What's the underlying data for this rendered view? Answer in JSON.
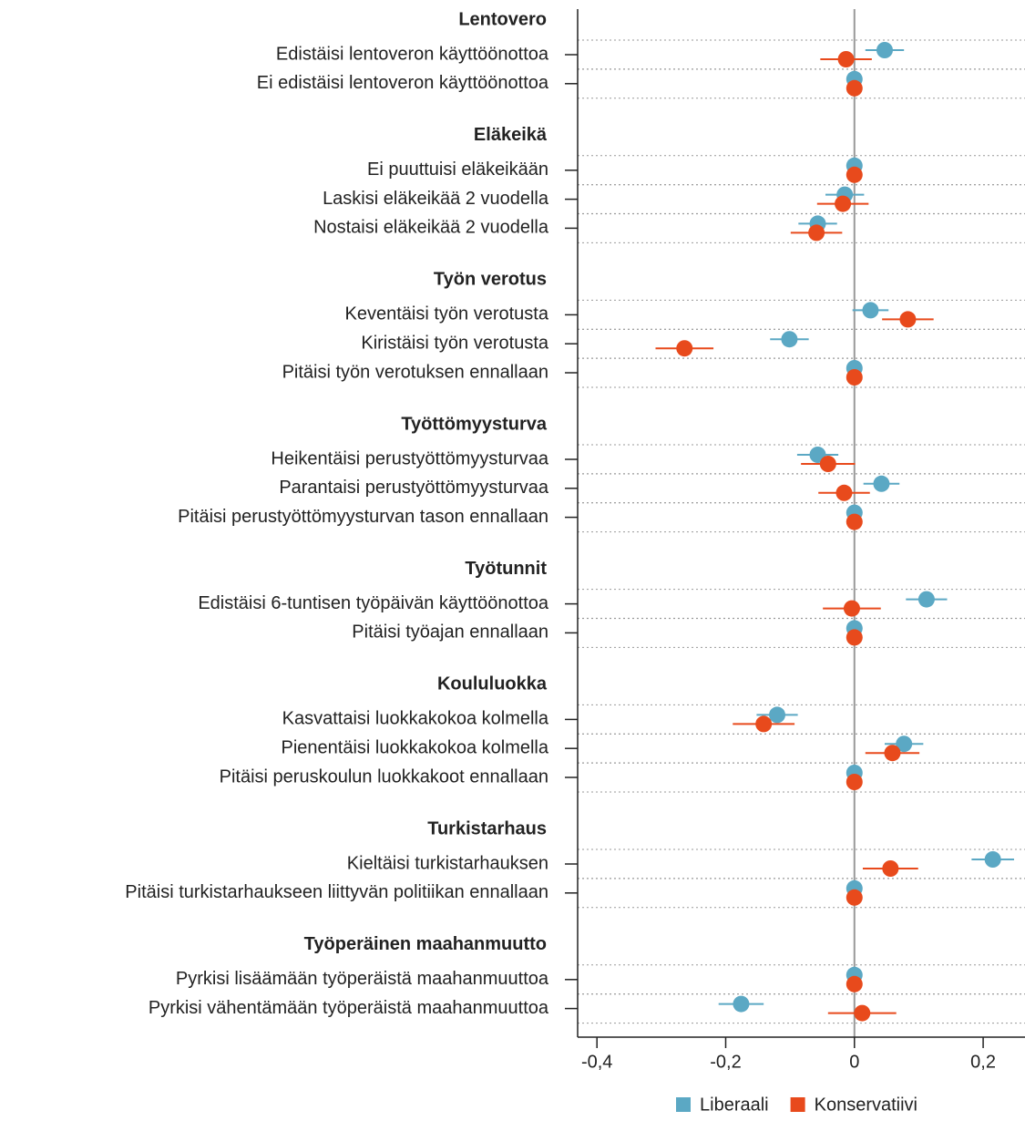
{
  "chart_data": {
    "type": "dotplot",
    "groups": [
      {
        "label": "Lentovero",
        "categories": [
          "Edistäisi lentoveron käyttöönottoa",
          "Ei edistäisi lentoveron käyttöönottoa"
        ]
      },
      {
        "label": "Eläkeikä",
        "categories": [
          "Ei puuttuisi eläkeikään",
          "Laskisi eläkeikää 2 vuodella",
          "Nostaisi eläkeikää 2 vuodella"
        ]
      },
      {
        "label": "Työn verotus",
        "categories": [
          "Keventäisi työn verotusta",
          "Kiristäisi työn verotusta",
          "Pitäisi työn verotuksen ennallaan"
        ]
      },
      {
        "label": "Työttömyysturva",
        "categories": [
          "Heikentäisi perustyöttömyysturvaa",
          "Parantaisi perustyöttömyysturvaa",
          "Pitäisi perustyöttömyysturvan tason ennallaan"
        ]
      },
      {
        "label": "Työtunnit",
        "categories": [
          "Edistäisi 6-tuntisen työpäivän käyttöönottoa",
          "Pitäisi työajan ennallaan"
        ]
      },
      {
        "label": "Koululuokka",
        "categories": [
          "Kasvattaisi luokkakokoa kolmella",
          "Pienentäisi luokkakokoa kolmella",
          "Pitäisi peruskoulun luokkakoot ennallaan"
        ]
      },
      {
        "label": "Turkistarhaus",
        "categories": [
          "Kieltäisi turkistarhauksen",
          "Pitäisi turkistarhaukseen liittyvän politiikan ennallaan"
        ]
      },
      {
        "label": "Työperäinen maahanmuutto",
        "categories": [
          "Pyrkisi lisäämään työperäistä maahanmuuttoa",
          "Pyrkisi vähentämään työperäistä maahanmuuttoa"
        ]
      }
    ],
    "series": [
      {
        "name": "Liberaali",
        "color": "#5ba8c4",
        "values": [
          0.047,
          0,
          0,
          -0.015,
          -0.057,
          0.025,
          -0.101,
          0,
          -0.057,
          0.042,
          0,
          0.112,
          0,
          -0.12,
          0.077,
          0,
          0.215,
          0,
          0,
          -0.176
        ],
        "errors": [
          0.03,
          0,
          0,
          0.03,
          0.03,
          0.028,
          0.03,
          0,
          0.032,
          0.028,
          0,
          0.032,
          0,
          0.032,
          0.03,
          0,
          0.033,
          0,
          0,
          0.035
        ]
      },
      {
        "name": "Konservatiivi",
        "color": "#e84a1c",
        "values": [
          -0.013,
          0,
          0,
          -0.018,
          -0.059,
          0.083,
          -0.264,
          0,
          -0.041,
          -0.016,
          0,
          -0.004,
          0,
          -0.141,
          0.059,
          0,
          0.056,
          0,
          0,
          0.012
        ],
        "errors": [
          0.04,
          0,
          0,
          0.04,
          0.04,
          0.04,
          0.045,
          0,
          0.042,
          0.04,
          0,
          0.045,
          0,
          0.048,
          0.042,
          0,
          0.043,
          0,
          0,
          0.053
        ]
      }
    ],
    "xlim": [
      -0.43,
      0.265
    ],
    "xticks": [
      {
        "value": -0.4,
        "label": "-0,4"
      },
      {
        "value": -0.2,
        "label": "-0,2"
      },
      0,
      {
        "value": 0.2,
        "label": "0,2"
      }
    ],
    "legend": "bottom"
  }
}
